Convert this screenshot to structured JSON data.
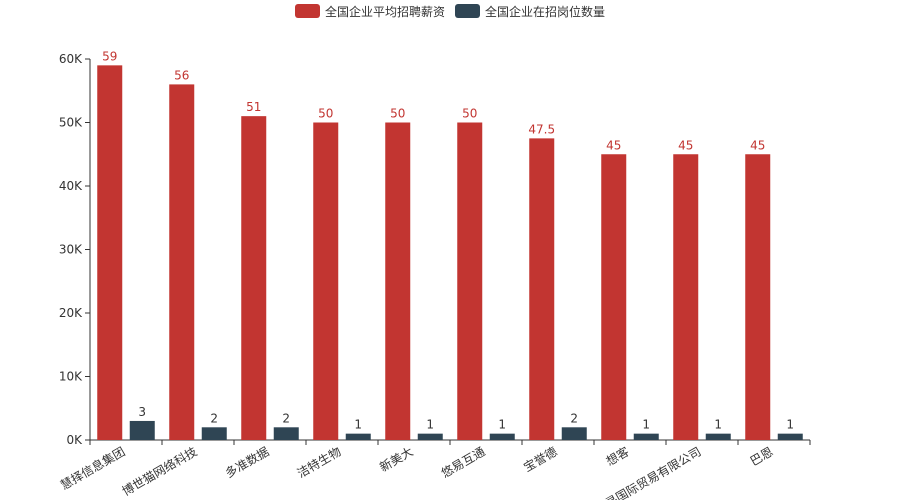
{
  "chart_data": {
    "type": "bar",
    "categories": [
      "慧择信息集团",
      "博世猫网络科技",
      "多准数据",
      "洁特生物",
      "新美大",
      "悠易互通",
      "宝誉德",
      "想客",
      "丰寻国际贸易有限公司",
      "巴恩"
    ],
    "series": [
      {
        "name": "全国企业平均招聘薪资",
        "values": [
          59000,
          56000,
          51000,
          50000,
          50000,
          50000,
          47500,
          45000,
          45000,
          45000
        ],
        "labels": [
          "59",
          "56",
          "51",
          "50",
          "50",
          "50",
          "47.5",
          "45",
          "45",
          "45"
        ],
        "color": "#c23531"
      },
      {
        "name": "全国企业在招岗位数量",
        "values": [
          3,
          2,
          2,
          1,
          1,
          1,
          2,
          1,
          1,
          1
        ],
        "labels": [
          "3",
          "2",
          "2",
          "1",
          "1",
          "1",
          "2",
          "1",
          "1",
          "1"
        ],
        "color": "#2f4554"
      }
    ],
    "ylim": [
      0,
      60000
    ],
    "yticks": [
      0,
      10000,
      20000,
      30000,
      40000,
      50000,
      60000
    ],
    "ytick_labels": [
      "0K",
      "10K",
      "20K",
      "30K",
      "40K",
      "50K",
      "60K"
    ],
    "grid": false,
    "legend_position": "top-center",
    "title": "",
    "xlabel": "",
    "ylabel": ""
  }
}
